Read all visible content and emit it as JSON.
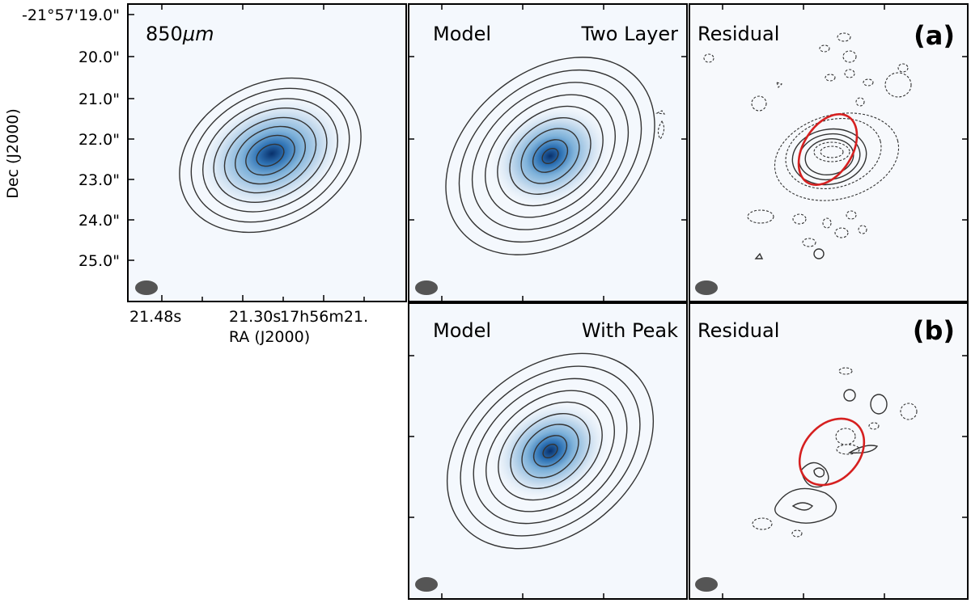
{
  "panels": {
    "obs": {
      "label": "850",
      "label_unit": "μm"
    },
    "model_a": {
      "left": "Model",
      "right": "Two Layer"
    },
    "resid_a": {
      "left": "Residual",
      "tag": "(a)"
    },
    "model_b": {
      "left": "Model",
      "right": "With Peak"
    },
    "resid_b": {
      "left": "Residual",
      "tag": "(b)"
    }
  },
  "axes": {
    "ylabel": "Dec (J2000)",
    "xlabel": "RA (J2000)",
    "yticks": [
      "-21°57'19.0\"",
      "20.0\"",
      "21.0\"",
      "22.0\"",
      "23.0\"",
      "24.0\"",
      "25.0\""
    ],
    "xticks": [
      "21.48s",
      "21.30s",
      "17h56m21."
    ]
  },
  "colors": {
    "map_low": "#f4f8fd",
    "map_peak": "#08306b",
    "contour": "#333333",
    "ellipse": "#d62020",
    "beam": "#555555"
  }
}
